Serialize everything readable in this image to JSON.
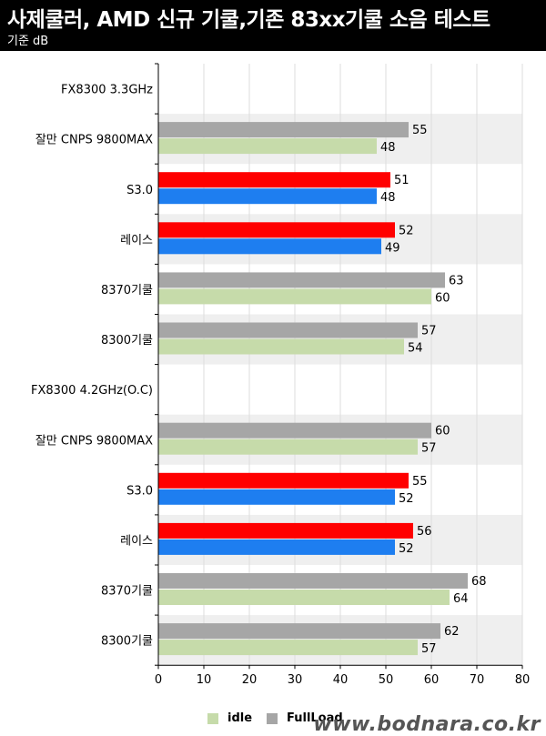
{
  "header": {
    "title": "사제쿨러, AMD 신규 기쿨,기존 83xx기쿨 소음 테스트",
    "subtitle": "기준 dB"
  },
  "watermark": "www.bodnara.co.kr",
  "chart_data": {
    "type": "bar",
    "orientation": "horizontal",
    "title": "사제쿨러, AMD 신규 기쿨,기존 83xx기쿨 소음 테스트",
    "subtitle": "기준 dB",
    "xlabel": "",
    "ylabel": "",
    "xlim": [
      0,
      80
    ],
    "xticks": [
      0,
      10,
      20,
      30,
      40,
      50,
      60,
      70,
      80
    ],
    "grid": true,
    "legend_position": "bottom",
    "legend": [
      {
        "name": "idle",
        "color": "#c6dbaa"
      },
      {
        "name": "FullLoad",
        "color": "#a6a6a6"
      }
    ],
    "categories": [
      {
        "label": "FX8300 3.3GHz",
        "full": null,
        "idle": null,
        "full_color": "",
        "idle_color": ""
      },
      {
        "label": "잘만 CNPS 9800MAX",
        "full": 55,
        "idle": 48,
        "full_color": "#a6a6a6",
        "idle_color": "#c6dbaa"
      },
      {
        "label": "S3.0",
        "full": 51,
        "idle": 48,
        "full_color": "#ff0000",
        "idle_color": "#1e7ef0"
      },
      {
        "label": "레이스",
        "full": 52,
        "idle": 49,
        "full_color": "#ff0000",
        "idle_color": "#1e7ef0"
      },
      {
        "label": "8370기쿨",
        "full": 63,
        "idle": 60,
        "full_color": "#a6a6a6",
        "idle_color": "#c6dbaa"
      },
      {
        "label": "8300기쿨",
        "full": 57,
        "idle": 54,
        "full_color": "#a6a6a6",
        "idle_color": "#c6dbaa"
      },
      {
        "label": "FX8300 4.2GHz(O.C)",
        "full": null,
        "idle": null,
        "full_color": "",
        "idle_color": ""
      },
      {
        "label": "잘만 CNPS 9800MAX",
        "full": 60,
        "idle": 57,
        "full_color": "#a6a6a6",
        "idle_color": "#c6dbaa"
      },
      {
        "label": "S3.0",
        "full": 55,
        "idle": 52,
        "full_color": "#ff0000",
        "idle_color": "#1e7ef0"
      },
      {
        "label": "레이스",
        "full": 56,
        "idle": 52,
        "full_color": "#ff0000",
        "idle_color": "#1e7ef0"
      },
      {
        "label": "8370기쿨",
        "full": 68,
        "idle": 64,
        "full_color": "#a6a6a6",
        "idle_color": "#c6dbaa"
      },
      {
        "label": "8300기쿨",
        "full": 62,
        "idle": 57,
        "full_color": "#a6a6a6",
        "idle_color": "#c6dbaa"
      }
    ]
  }
}
